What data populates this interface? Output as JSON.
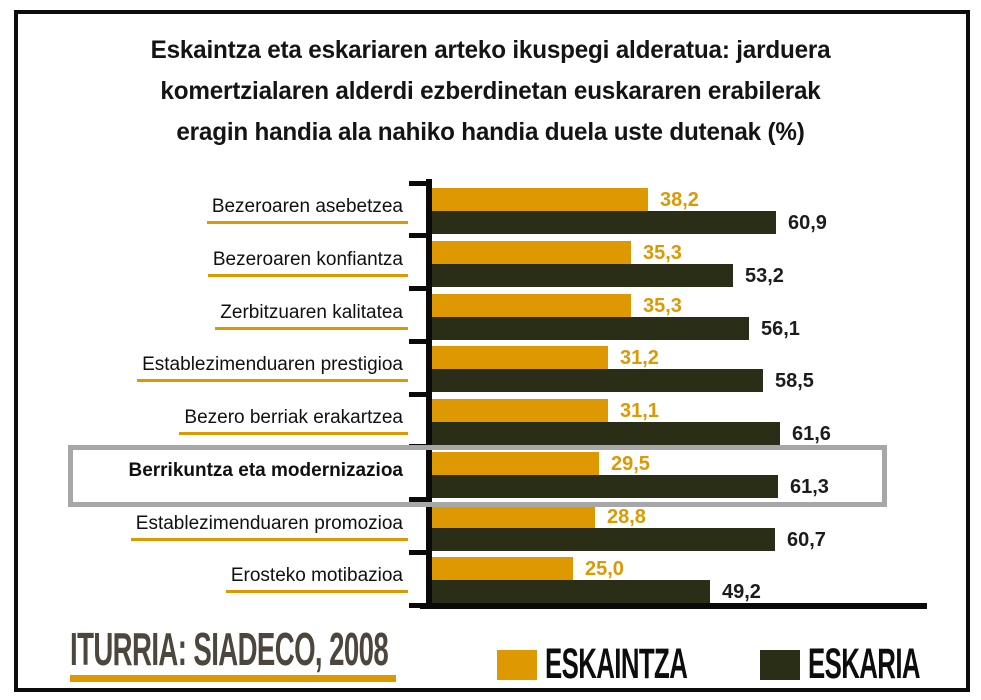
{
  "title_lines": [
    "Eskaintza eta eskariaren arteko ikuspegi alderatua: jarduera",
    "komertzialaren alderdi ezberdinetan euskararen erabilerak",
    "eragin handia ala nahiko handia duela uste dutenak (%)"
  ],
  "chart_data": {
    "type": "bar",
    "orientation": "horizontal",
    "title": "Eskaintza eta eskariaren arteko ikuspegi alderatua: jarduera komertzialaren alderdi ezberdinetan euskararen erabilerak eragin handia ala nahiko handia duela uste dutenak (%)",
    "categories": [
      "Bezeroaren asebetzea",
      "Bezeroaren konfiantza",
      "Zerbitzuaren kalitatea",
      "Establezimenduaren prestigioa",
      "Bezero berriak erakartzea",
      "Berrikuntza eta modernizazioa",
      "Establezimenduaren promozioa",
      "Erosteko motibazioa"
    ],
    "series": [
      {
        "name": "ESKAINTZA",
        "color": "#dd9802",
        "values": [
          38.2,
          35.3,
          35.3,
          31.2,
          31.1,
          29.5,
          28.8,
          25.0
        ]
      },
      {
        "name": "ESKARIA",
        "color": "#2b2e16",
        "values": [
          60.9,
          53.2,
          56.1,
          58.5,
          61.6,
          61.3,
          60.7,
          49.2
        ]
      }
    ],
    "value_labels": true,
    "decimal_separator": ",",
    "highlighted_category": "Berrikuntza eta modernizazioa",
    "xlim": [
      0,
      88
    ],
    "grid": false,
    "legend_position": "bottom"
  },
  "footer": {
    "source": "ITURRIA: SIADECO, 2008"
  },
  "colors": {
    "eskaintza": "#dd9802",
    "eskaria": "#2b2e16",
    "highlight_border": "#a7a7a7",
    "source_text": "#4c463c",
    "axis": "#0a0a0a"
  }
}
